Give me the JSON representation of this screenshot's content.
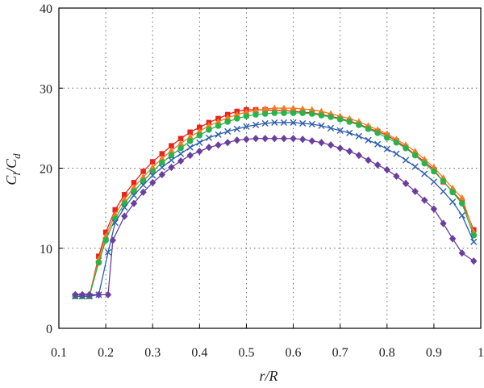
{
  "chart_data": {
    "type": "line",
    "xlabel": "r/R",
    "ylabel": "Cl/Cd",
    "ylabel_main": "C",
    "ylabel_sub1": "l",
    "ylabel_sep": "/C",
    "ylabel_sub2": "d",
    "xlim": [
      0.1,
      1.0
    ],
    "ylim": [
      0,
      40
    ],
    "xticks": [
      0.1,
      0.2,
      0.3,
      0.4,
      0.5,
      0.6,
      0.7,
      0.8,
      0.9,
      1.0
    ],
    "xtick_labels": [
      "0.1",
      "0.2",
      "0.3",
      "0.4",
      "0.5",
      "0.6",
      "0.7",
      "0.8",
      "0.9",
      "1"
    ],
    "yticks": [
      0,
      10,
      20,
      30,
      40
    ],
    "ytick_labels": [
      "0",
      "10",
      "20",
      "30",
      "40"
    ],
    "grid": true,
    "series": [
      {
        "color": "#e8251d",
        "marker": "square",
        "x": [
          0.135,
          0.15,
          0.165,
          0.185,
          0.2,
          0.22,
          0.24,
          0.26,
          0.28,
          0.3,
          0.32,
          0.34,
          0.36,
          0.38,
          0.4,
          0.42,
          0.44,
          0.46,
          0.48,
          0.5,
          0.52,
          0.54,
          0.56,
          0.58,
          0.6,
          0.62,
          0.64,
          0.66,
          0.68,
          0.7,
          0.72,
          0.74,
          0.76,
          0.78,
          0.8,
          0.82,
          0.84,
          0.86,
          0.88,
          0.9,
          0.92,
          0.94,
          0.96,
          0.985
        ],
        "y": [
          4.0,
          4.0,
          4.0,
          9.0,
          12.0,
          14.8,
          16.7,
          18.2,
          19.6,
          20.8,
          21.8,
          22.8,
          23.7,
          24.5,
          25.1,
          25.7,
          26.2,
          26.7,
          27.1,
          27.3,
          27.3,
          27.3,
          27.2,
          27.2,
          27.1,
          27.0,
          26.9,
          26.7,
          26.5,
          26.2,
          25.9,
          25.5,
          25.0,
          24.6,
          24.1,
          23.4,
          22.6,
          21.7,
          20.8,
          19.8,
          18.3,
          17.1,
          15.8,
          12.3
        ]
      },
      {
        "color": "#f47b20",
        "marker": "triangle",
        "x": [
          0.135,
          0.15,
          0.165,
          0.185,
          0.2,
          0.22,
          0.24,
          0.26,
          0.28,
          0.3,
          0.32,
          0.34,
          0.36,
          0.38,
          0.4,
          0.42,
          0.44,
          0.46,
          0.48,
          0.5,
          0.52,
          0.54,
          0.56,
          0.58,
          0.6,
          0.62,
          0.64,
          0.66,
          0.68,
          0.7,
          0.72,
          0.74,
          0.76,
          0.78,
          0.8,
          0.82,
          0.84,
          0.86,
          0.88,
          0.9,
          0.92,
          0.94,
          0.96,
          0.985
        ],
        "y": [
          4.0,
          4.0,
          4.0,
          8.6,
          11.5,
          14.2,
          16.1,
          17.6,
          18.9,
          20.1,
          21.2,
          22.2,
          23.1,
          23.9,
          24.6,
          25.3,
          25.8,
          26.3,
          26.7,
          27.0,
          27.2,
          27.4,
          27.5,
          27.5,
          27.5,
          27.4,
          27.3,
          27.1,
          26.8,
          26.5,
          26.2,
          25.8,
          25.3,
          24.8,
          24.3,
          23.6,
          22.9,
          22.1,
          21.1,
          20.1,
          18.8,
          17.5,
          16.3,
          12.0
        ]
      },
      {
        "color": "#2ab34b",
        "marker": "circle",
        "x": [
          0.135,
          0.15,
          0.165,
          0.185,
          0.2,
          0.22,
          0.24,
          0.26,
          0.28,
          0.3,
          0.32,
          0.34,
          0.36,
          0.38,
          0.4,
          0.42,
          0.44,
          0.46,
          0.48,
          0.5,
          0.52,
          0.54,
          0.56,
          0.58,
          0.6,
          0.62,
          0.64,
          0.66,
          0.68,
          0.7,
          0.72,
          0.74,
          0.76,
          0.78,
          0.8,
          0.82,
          0.84,
          0.86,
          0.88,
          0.9,
          0.92,
          0.94,
          0.96,
          0.985
        ],
        "y": [
          4.0,
          4.0,
          4.0,
          8.2,
          11.0,
          13.7,
          15.6,
          17.1,
          18.4,
          19.6,
          20.7,
          21.6,
          22.5,
          23.4,
          24.1,
          24.8,
          25.3,
          25.8,
          26.2,
          26.5,
          26.7,
          26.8,
          26.9,
          26.9,
          26.9,
          26.9,
          26.8,
          26.6,
          26.4,
          26.1,
          25.8,
          25.4,
          24.9,
          24.4,
          23.8,
          23.2,
          22.5,
          21.6,
          20.6,
          19.6,
          18.4,
          17.0,
          15.6,
          11.6
        ]
      },
      {
        "color": "#2e5fb0",
        "marker": "x",
        "x": [
          0.135,
          0.15,
          0.165,
          0.185,
          0.205,
          0.22,
          0.24,
          0.26,
          0.28,
          0.3,
          0.32,
          0.34,
          0.36,
          0.38,
          0.4,
          0.42,
          0.44,
          0.46,
          0.48,
          0.5,
          0.52,
          0.54,
          0.56,
          0.58,
          0.6,
          0.62,
          0.64,
          0.66,
          0.68,
          0.7,
          0.72,
          0.74,
          0.76,
          0.78,
          0.8,
          0.82,
          0.84,
          0.86,
          0.88,
          0.9,
          0.92,
          0.94,
          0.96,
          0.985
        ],
        "y": [
          4.0,
          4.0,
          4.0,
          4.2,
          9.5,
          13.2,
          15.1,
          16.6,
          17.9,
          19.1,
          20.1,
          21.0,
          21.8,
          22.6,
          23.2,
          23.8,
          24.2,
          24.6,
          24.9,
          25.2,
          25.4,
          25.6,
          25.7,
          25.7,
          25.7,
          25.6,
          25.5,
          25.3,
          25.0,
          24.7,
          24.4,
          24.0,
          23.5,
          23.0,
          22.4,
          21.8,
          21.0,
          20.2,
          19.3,
          18.3,
          17.1,
          15.8,
          14.1,
          10.8
        ]
      },
      {
        "color": "#6b3fa0",
        "marker": "diamond",
        "x": [
          0.135,
          0.15,
          0.165,
          0.185,
          0.205,
          0.215,
          0.24,
          0.26,
          0.28,
          0.3,
          0.32,
          0.34,
          0.36,
          0.38,
          0.4,
          0.42,
          0.44,
          0.46,
          0.48,
          0.5,
          0.52,
          0.54,
          0.56,
          0.58,
          0.6,
          0.62,
          0.64,
          0.66,
          0.68,
          0.7,
          0.72,
          0.74,
          0.76,
          0.78,
          0.8,
          0.82,
          0.84,
          0.86,
          0.88,
          0.9,
          0.92,
          0.94,
          0.96,
          0.985
        ],
        "y": [
          4.2,
          4.2,
          4.2,
          4.2,
          4.2,
          11.0,
          14.0,
          15.6,
          17.0,
          18.2,
          19.2,
          20.1,
          20.9,
          21.6,
          22.1,
          22.6,
          22.9,
          23.2,
          23.5,
          23.6,
          23.7,
          23.7,
          23.7,
          23.7,
          23.7,
          23.6,
          23.4,
          23.2,
          22.9,
          22.5,
          22.1,
          21.6,
          21.0,
          20.4,
          19.8,
          19.0,
          18.1,
          17.1,
          16.0,
          14.9,
          13.1,
          11.2,
          9.4,
          8.4
        ]
      }
    ]
  }
}
